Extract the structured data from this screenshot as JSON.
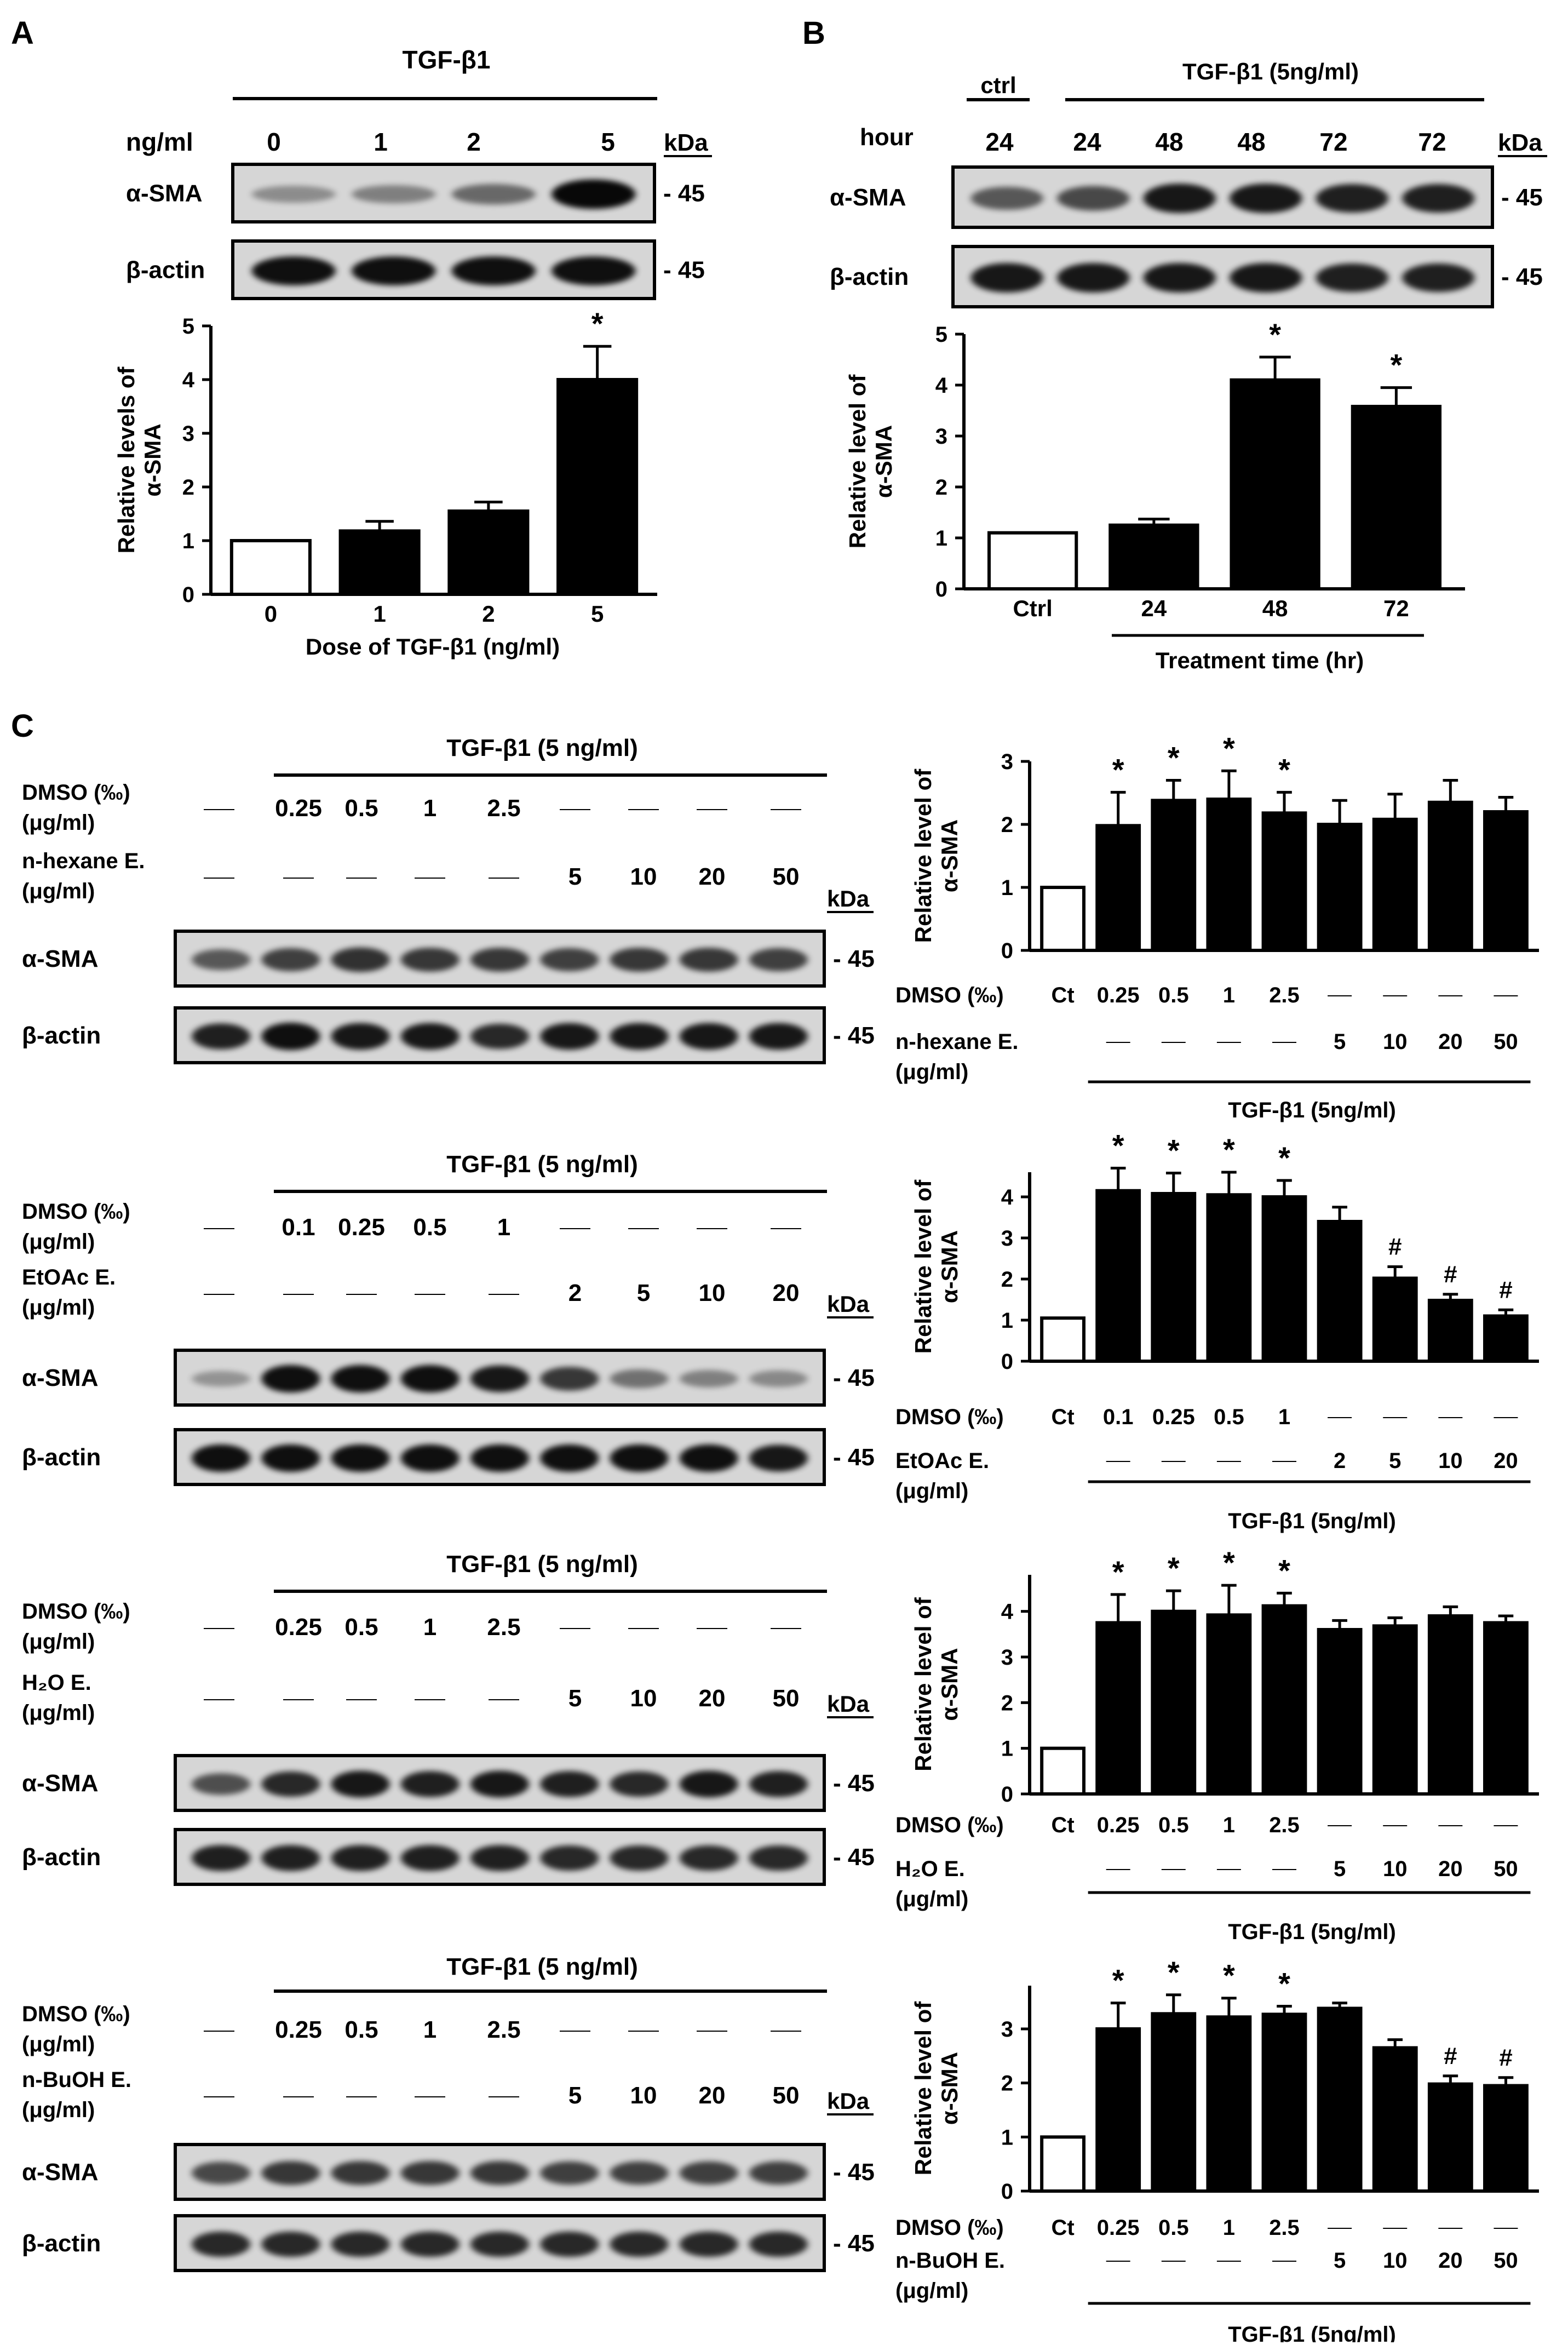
{
  "panels": [
    {
      "letter": "A",
      "treatment_header": "TGF-β1",
      "row_label": "ng/ml",
      "lanes": [
        "0",
        "1",
        "2",
        "5"
      ],
      "kda_label": "kDa",
      "blots": [
        {
          "label": "α-SMA",
          "marker": "45",
          "intensities": [
            0.12,
            0.2,
            0.35,
            0.95
          ]
        },
        {
          "label": "β-actin",
          "marker": "45",
          "intensities": [
            0.9,
            0.9,
            0.9,
            0.9
          ]
        }
      ]
    },
    {
      "letter": "B",
      "ctrl_header": "ctrl",
      "treatment_header": "TGF-β1 (5ng/ml)",
      "row_label": "hour",
      "lanes": [
        "24",
        "24",
        "48",
        "48",
        "72",
        "72"
      ],
      "kda_label": "kDa",
      "blots": [
        {
          "label": "α-SMA",
          "marker": "45",
          "intensities": [
            0.45,
            0.55,
            0.85,
            0.85,
            0.8,
            0.8
          ]
        },
        {
          "label": "β-actin",
          "marker": "45",
          "intensities": [
            0.85,
            0.85,
            0.85,
            0.85,
            0.8,
            0.8
          ]
        }
      ]
    },
    {
      "letter": "C",
      "subpanels": [
        {
          "treatment_header": "TGF-β1 (5 ng/ml)",
          "dmso_label": [
            "DMSO (‰)",
            "(μg/ml)"
          ],
          "extract_label": [
            "n-hexane E.",
            "(μg/ml)"
          ],
          "dmso_values": [
            "",
            "0.25",
            "0.5",
            "1",
            "2.5",
            "",
            "",
            "",
            ""
          ],
          "extract_values": [
            "",
            "",
            "",
            "",
            "",
            "5",
            "10",
            "20",
            "50"
          ],
          "kda_label": "kDa",
          "blots": [
            {
              "label": "α-SMA",
              "marker": "45",
              "intensities": [
                0.45,
                0.6,
                0.7,
                0.65,
                0.65,
                0.6,
                0.65,
                0.65,
                0.6
              ]
            },
            {
              "label": "β-actin",
              "marker": "45",
              "intensities": [
                0.8,
                0.9,
                0.85,
                0.85,
                0.75,
                0.85,
                0.85,
                0.85,
                0.85
              ]
            }
          ]
        },
        {
          "treatment_header": "TGF-β1 (5 ng/ml)",
          "dmso_label": [
            "DMSO (‰)",
            "(μg/ml)"
          ],
          "extract_label": [
            "EtOAc E.",
            "(μg/ml)"
          ],
          "dmso_values": [
            "",
            "0.1",
            "0.25",
            "0.5",
            "1",
            "",
            "",
            "",
            ""
          ],
          "extract_values": [
            "",
            "",
            "",
            "",
            "",
            "2",
            "5",
            "10",
            "20"
          ],
          "kda_label": "kDa",
          "blots": [
            {
              "label": "α-SMA",
              "marker": "45",
              "intensities": [
                0.08,
                0.9,
                0.9,
                0.9,
                0.85,
                0.65,
                0.3,
                0.2,
                0.15
              ]
            },
            {
              "label": "β-actin",
              "marker": "45",
              "intensities": [
                0.9,
                0.9,
                0.9,
                0.9,
                0.9,
                0.9,
                0.9,
                0.9,
                0.85
              ]
            }
          ]
        },
        {
          "treatment_header": "TGF-β1 (5 ng/ml)",
          "dmso_label": [
            "DMSO (‰)",
            "(μg/ml)"
          ],
          "extract_label": [
            "H₂O E.",
            "(μg/ml)"
          ],
          "dmso_values": [
            "—",
            "0.25",
            "0.5",
            "1",
            "2.5",
            "—",
            "—",
            "—",
            "—"
          ],
          "extract_values": [
            "—",
            "—",
            "—",
            "—",
            "—",
            "5",
            "10",
            "20",
            "50"
          ],
          "kda_label": "kDa",
          "blots": [
            {
              "label": "α-SMA",
              "marker": "45",
              "intensities": [
                0.5,
                0.75,
                0.85,
                0.8,
                0.85,
                0.8,
                0.75,
                0.85,
                0.8
              ]
            },
            {
              "label": "β-actin",
              "marker": "45",
              "intensities": [
                0.8,
                0.8,
                0.8,
                0.8,
                0.8,
                0.75,
                0.75,
                0.75,
                0.75
              ]
            }
          ]
        },
        {
          "treatment_header": "TGF-β1 (5 ng/ml)",
          "dmso_label": [
            "DMSO (‰)",
            "(μg/ml)"
          ],
          "extract_label": [
            "n-BuOH E.",
            "(μg/ml)"
          ],
          "dmso_values": [
            "—",
            "0.25",
            "0.5",
            "1",
            "2.5",
            "—",
            "—",
            "—",
            "—"
          ],
          "extract_values": [
            "—",
            "—",
            "—",
            "—",
            "—",
            "5",
            "10",
            "20",
            "50"
          ],
          "kda_label": "kDa",
          "blots": [
            {
              "label": "α-SMA",
              "marker": "45",
              "intensities": [
                0.55,
                0.65,
                0.65,
                0.65,
                0.65,
                0.6,
                0.6,
                0.6,
                0.6
              ]
            },
            {
              "label": "β-actin",
              "marker": "45",
              "intensities": [
                0.75,
                0.75,
                0.75,
                0.75,
                0.75,
                0.75,
                0.75,
                0.75,
                0.75
              ]
            }
          ]
        }
      ]
    }
  ],
  "chart_data": [
    {
      "id": "A",
      "type": "bar",
      "ylabel": [
        "Relative levels of",
        "α-SMA"
      ],
      "xlabel": "Dose of TGF-β1 (ng/ml)",
      "categories": [
        "0",
        "1",
        "2",
        "5"
      ],
      "values": [
        1.0,
        1.18,
        1.55,
        4.0
      ],
      "errors": [
        0.0,
        0.18,
        0.17,
        0.62
      ],
      "open": [
        true,
        false,
        false,
        false
      ],
      "marks": [
        "",
        "",
        "",
        "*"
      ],
      "ylim": [
        0,
        5
      ],
      "yticks": [
        0,
        1,
        2,
        3,
        4,
        5
      ]
    },
    {
      "id": "B",
      "type": "bar",
      "ylabel": [
        "Relative level of",
        "α-SMA"
      ],
      "xlabel": "Treatment time (hr)",
      "categories": [
        "Ctrl",
        "24",
        "48",
        "72"
      ],
      "values": [
        1.1,
        1.25,
        4.1,
        3.58
      ],
      "errors": [
        0.0,
        0.12,
        0.45,
        0.37
      ],
      "open": [
        true,
        false,
        false,
        false
      ],
      "marks": [
        "",
        "",
        "*",
        "*"
      ],
      "ylim": [
        0,
        5
      ],
      "yticks": [
        0,
        1,
        2,
        3,
        4,
        5
      ]
    },
    {
      "id": "C1",
      "type": "bar",
      "ylabel": [
        "Relative level of",
        "α-SMA"
      ],
      "categories": [
        "Ct",
        "0.25",
        "0.5",
        "1",
        "2.5",
        "5",
        "10",
        "20",
        "50"
      ],
      "dmso_label": "DMSO (‰)",
      "dmso_values": [
        "Ct",
        "0.25",
        "0.5",
        "1",
        "2.5",
        "",
        "",
        "",
        ""
      ],
      "extract_label": [
        "n-hexane E.",
        "(μg/ml)"
      ],
      "extract_values": [
        "",
        "",
        "",
        "",
        "",
        "5",
        "10",
        "20",
        "50"
      ],
      "treatment_label": "TGF-β1 (5ng/ml)",
      "values": [
        1.0,
        1.98,
        2.38,
        2.4,
        2.18,
        2.0,
        2.08,
        2.35,
        2.2
      ],
      "errors": [
        0.0,
        0.53,
        0.32,
        0.45,
        0.33,
        0.38,
        0.4,
        0.35,
        0.23
      ],
      "open": [
        true,
        false,
        false,
        false,
        false,
        false,
        false,
        false,
        false
      ],
      "marks": [
        "",
        "*",
        "*",
        "*",
        "*",
        "",
        "",
        "",
        ""
      ],
      "ylim": [
        0,
        3
      ],
      "yticks": [
        0,
        1,
        2,
        3
      ]
    },
    {
      "id": "C2",
      "type": "bar",
      "ylabel": [
        "Relative level of",
        "α-SMA"
      ],
      "categories": [
        "Ct",
        "0.1",
        "0.25",
        "0.5",
        "1",
        "2",
        "5",
        "10",
        "20"
      ],
      "dmso_label": "DMSO (‰)",
      "dmso_values": [
        "Ct",
        "0.1",
        "0.25",
        "0.5",
        "1",
        "",
        "",
        "",
        ""
      ],
      "extract_label": [
        "EtOAc E.",
        "(μg/ml)"
      ],
      "extract_values": [
        "",
        "",
        "",
        "",
        "",
        "2",
        "5",
        "10",
        "20"
      ],
      "treatment_label": "TGF-β1 (5ng/ml)",
      "values": [
        1.05,
        4.15,
        4.08,
        4.05,
        4.0,
        3.4,
        2.02,
        1.48,
        1.1
      ],
      "errors": [
        0.0,
        0.55,
        0.5,
        0.55,
        0.4,
        0.35,
        0.28,
        0.15,
        0.15
      ],
      "open": [
        true,
        false,
        false,
        false,
        false,
        false,
        false,
        false,
        false
      ],
      "marks": [
        "",
        "*",
        "*",
        "*",
        "*",
        "",
        "#",
        "#",
        "#"
      ],
      "ylim": [
        0,
        4.6
      ],
      "yticks": [
        0,
        1,
        2,
        3,
        4
      ]
    },
    {
      "id": "C3",
      "type": "bar",
      "ylabel": [
        "Relative level of",
        "α-SMA"
      ],
      "categories": [
        "Ct",
        "0.25",
        "0.5",
        "1",
        "2.5",
        "5",
        "10",
        "20",
        "50"
      ],
      "dmso_label": "DMSO (‰)",
      "dmso_values": [
        "Ct",
        "0.25",
        "0.5",
        "1",
        "2.5",
        "",
        "",
        "",
        ""
      ],
      "extract_label": [
        "H₂O E.",
        "(μg/ml)"
      ],
      "extract_values": [
        "",
        "",
        "",
        "",
        "",
        "5",
        "10",
        "20",
        "50"
      ],
      "treatment_label": "TGF-β1 (5ng/ml)",
      "values": [
        1.0,
        3.75,
        4.0,
        3.92,
        4.12,
        3.6,
        3.68,
        3.9,
        3.75
      ],
      "errors": [
        0.0,
        0.62,
        0.45,
        0.65,
        0.28,
        0.2,
        0.18,
        0.2,
        0.15
      ],
      "open": [
        true,
        false,
        false,
        false,
        false,
        false,
        false,
        false,
        false
      ],
      "marks": [
        "",
        "*",
        "*",
        "*",
        "*",
        "",
        "",
        "",
        ""
      ],
      "ylim": [
        0,
        4.8
      ],
      "yticks": [
        0,
        1,
        2,
        3,
        4
      ]
    },
    {
      "id": "C4",
      "type": "bar",
      "ylabel": [
        "Relative level of",
        "α-SMA"
      ],
      "categories": [
        "Ct",
        "0.25",
        "0.5",
        "1",
        "2.5",
        "5",
        "10",
        "20",
        "50"
      ],
      "dmso_label": "DMSO (‰)",
      "dmso_values": [
        "Ct",
        "0.25",
        "0.5",
        "1",
        "2.5",
        "",
        "",
        "",
        ""
      ],
      "extract_label": [
        "n-BuOH E.",
        "(μg/ml)"
      ],
      "extract_values": [
        "",
        "",
        "",
        "",
        "",
        "5",
        "10",
        "20",
        "50"
      ],
      "treatment_label": "TGF-β1 (5ng/ml)",
      "values": [
        1.0,
        3.0,
        3.28,
        3.22,
        3.27,
        3.38,
        2.65,
        1.98,
        1.95
      ],
      "errors": [
        0.0,
        0.48,
        0.35,
        0.35,
        0.15,
        0.1,
        0.15,
        0.15,
        0.15
      ],
      "open": [
        true,
        false,
        false,
        false,
        false,
        false,
        false,
        false,
        false
      ],
      "marks": [
        "",
        "*",
        "*",
        "*",
        "*",
        "",
        "",
        "#",
        "#"
      ],
      "ylim": [
        0,
        3.8
      ],
      "yticks": [
        0,
        1,
        2,
        3
      ]
    }
  ]
}
